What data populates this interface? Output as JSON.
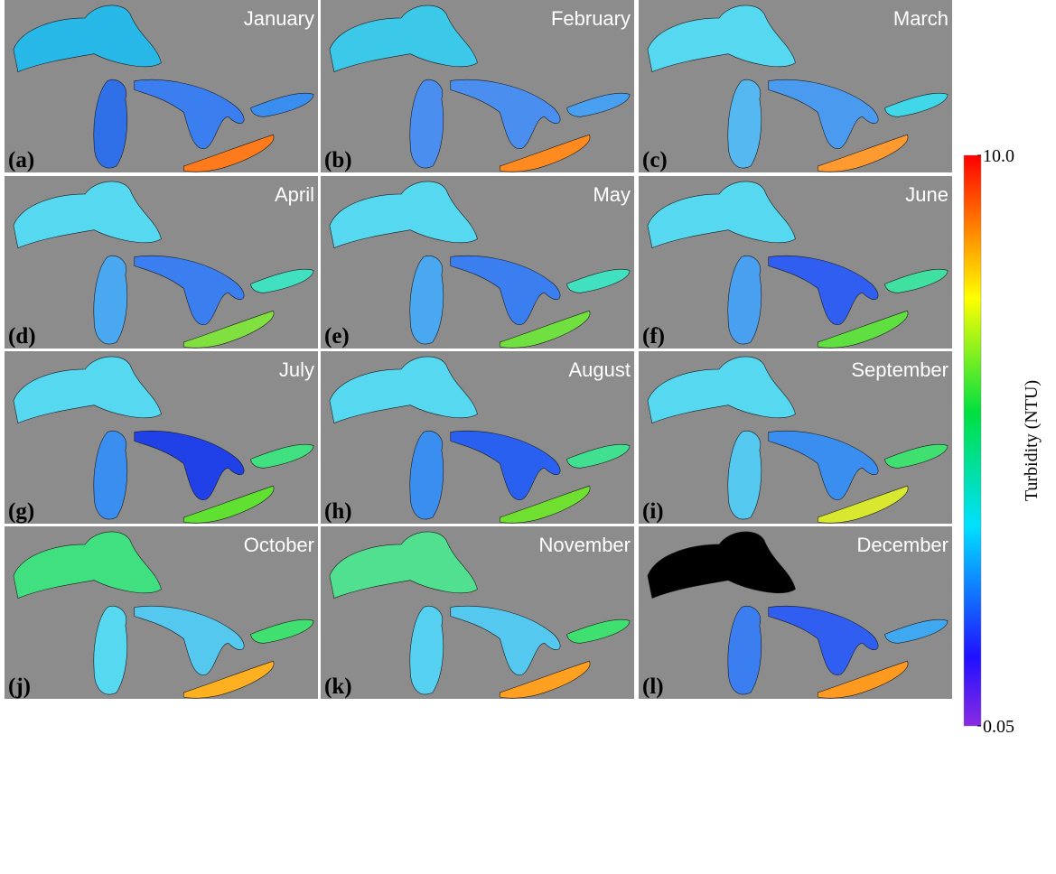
{
  "panels": [
    {
      "month": "January",
      "letter": "(a)"
    },
    {
      "month": "February",
      "letter": "(b)"
    },
    {
      "month": "March",
      "letter": "(c)"
    },
    {
      "month": "April",
      "letter": "(d)"
    },
    {
      "month": "May",
      "letter": "(e)"
    },
    {
      "month": "June",
      "letter": "(f)"
    },
    {
      "month": "July",
      "letter": "(g)"
    },
    {
      "month": "August",
      "letter": "(h)"
    },
    {
      "month": "September",
      "letter": "(i)"
    },
    {
      "month": "October",
      "letter": "(j)"
    },
    {
      "month": "November",
      "letter": "(k)"
    },
    {
      "month": "December",
      "letter": "(l)"
    }
  ],
  "colorbar": {
    "label": "Turbidity (NTU)",
    "lim": [
      0.05,
      10.0
    ],
    "log_scale": true,
    "ticks": [
      {
        "value": 10.0,
        "label": "10.0"
      },
      {
        "value": 0.05,
        "label": "0.05"
      }
    ]
  }
}
